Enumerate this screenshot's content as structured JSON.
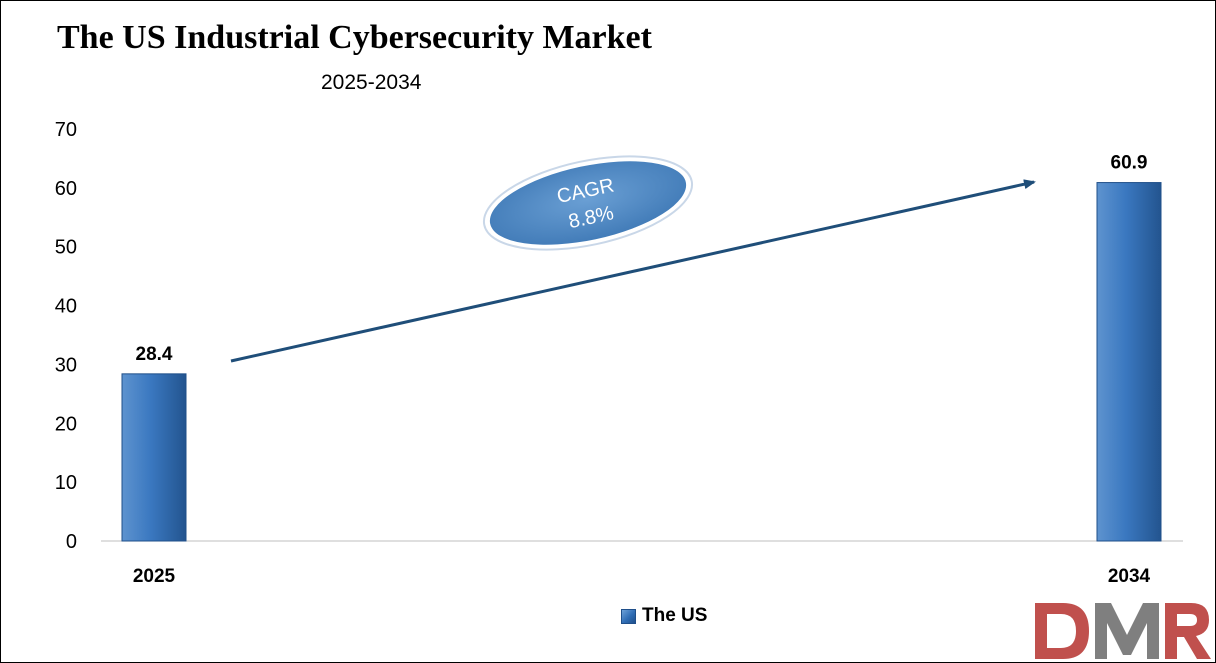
{
  "title": "The US Industrial Cybersecurity Market",
  "subtitle": "2025-2034",
  "annotation": {
    "line1": "CAGR",
    "line2": "8.8%"
  },
  "legend": {
    "label": "The US"
  },
  "logo": {
    "text": "DMR"
  },
  "colors": {
    "bar": "#2f6db5",
    "bar_dark": "#1f4f8a",
    "bar_light": "#6ea2d8",
    "arrow": "#1f4e79",
    "ellipse": "#5b92c9",
    "logo_red": "#c0504d",
    "logo_gray": "#7f7f7f"
  },
  "chart_data": {
    "type": "bar",
    "title": "The US Industrial Cybersecurity Market",
    "subtitle": "2025-2034",
    "categories": [
      "2025",
      "2034"
    ],
    "series": [
      {
        "name": "The US",
        "values": [
          28.4,
          60.9
        ],
        "data_labels": [
          "28.4",
          "60.9"
        ]
      }
    ],
    "ylim": [
      0,
      70
    ],
    "yticks": [
      "0",
      "10",
      "20",
      "30",
      "40",
      "50",
      "60",
      "70"
    ],
    "xlabel": "",
    "ylabel": "",
    "grid": false,
    "legend_position": "bottom"
  }
}
